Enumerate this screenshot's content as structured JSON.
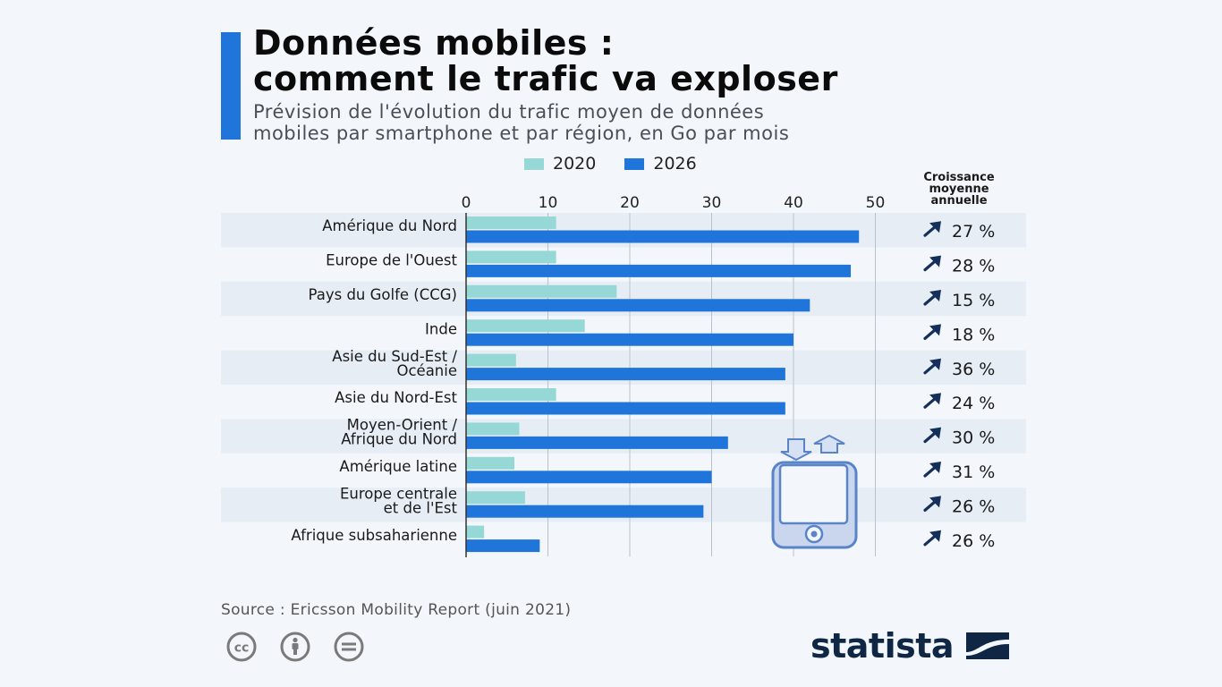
{
  "header": {
    "title_line1": "Données mobiles :",
    "title_line2": "comment le trafic va exploser",
    "subtitle_line1": "Prévision de l'évolution du trafic moyen de données",
    "subtitle_line2": "mobiles par smartphone et par région, en Go par mois"
  },
  "legend": {
    "series_2020": "2020",
    "series_2026": "2026"
  },
  "growth_header": {
    "line1": "Croissance",
    "line2": "moyenne",
    "line3": "annuelle"
  },
  "colors": {
    "series_2020": "#96d8d6",
    "series_2026": "#1f75d9",
    "accent": "#1f75d9",
    "arrow": "#14305a",
    "row_stripe": "#e6edf5",
    "grid": "#b9c2cc",
    "phone": "#5a84c8",
    "phone_fill": "#c9d6ee",
    "brand": "#0f2744"
  },
  "chart_data": {
    "type": "bar",
    "orientation": "horizontal",
    "categories": [
      [
        "Amérique du Nord"
      ],
      [
        "Europe de l'Ouest"
      ],
      [
        "Pays du Golfe (CCG)"
      ],
      [
        "Inde"
      ],
      [
        "Asie du Sud-Est /",
        "Océanie"
      ],
      [
        "Asie du Nord-Est"
      ],
      [
        "Moyen-Orient /",
        "Afrique du Nord"
      ],
      [
        "Amérique latine"
      ],
      [
        "Europe centrale",
        "et de l'Est"
      ],
      [
        "Afrique subsaharienne"
      ]
    ],
    "series": [
      {
        "name": "2020",
        "values": [
          11,
          11,
          18.4,
          14.5,
          6.1,
          11,
          6.5,
          5.9,
          7.2,
          2.2
        ]
      },
      {
        "name": "2026",
        "values": [
          48,
          47,
          42,
          40,
          39,
          39,
          32,
          30,
          29,
          9
        ]
      }
    ],
    "growth": [
      "27 %",
      "28 %",
      "15 %",
      "18 %",
      "36 %",
      "24 %",
      "30 %",
      "31 %",
      "26 %",
      "26 %"
    ],
    "xlim": [
      0,
      50
    ],
    "xticks": [
      "0",
      "10",
      "20",
      "30",
      "40",
      "50"
    ],
    "grid": true,
    "legend_position": "top"
  },
  "footer": {
    "source": "Source : Ericsson Mobility Report (juin 2021)",
    "brand": "statista"
  },
  "icons": {
    "cc": "creative-commons-icon",
    "by": "attribution-icon",
    "nd": "no-derivatives-icon",
    "brand": "statista-logo-icon",
    "growth": "arrow-up-right-icon",
    "illustration": "smartphone-data-icon"
  }
}
